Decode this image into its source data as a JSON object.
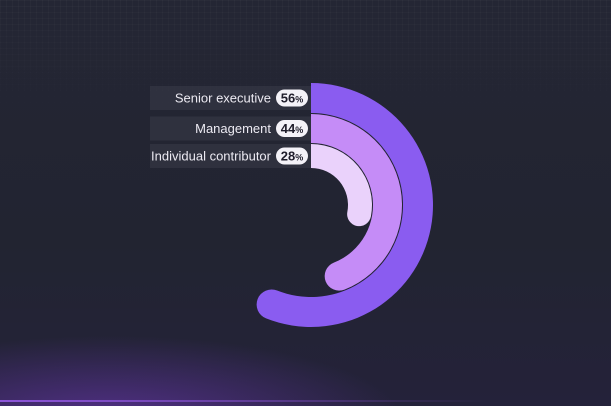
{
  "chart_data": {
    "type": "radial-bar",
    "categories": [
      "Senior executive",
      "Management",
      "Individual contributor"
    ],
    "values": [
      56,
      44,
      28
    ],
    "value_suffix": "%",
    "value_labels": [
      "56",
      "44",
      "28"
    ],
    "colors": [
      "#8a5cf0",
      "#c58cf7",
      "#ead2fb"
    ],
    "max": 100
  }
}
